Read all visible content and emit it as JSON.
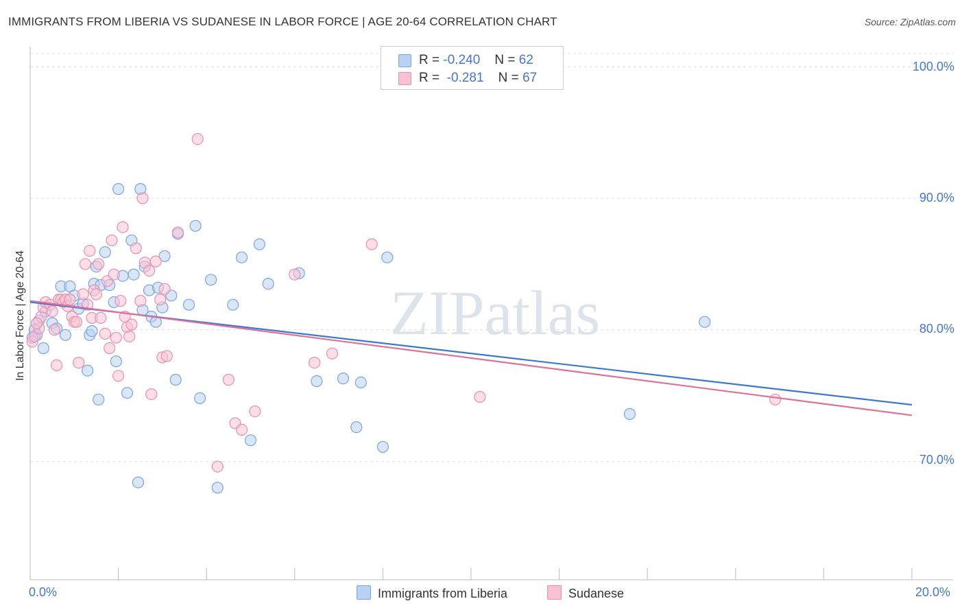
{
  "title": "IMMIGRANTS FROM LIBERIA VS SUDANESE IN LABOR FORCE | AGE 20-64 CORRELATION CHART",
  "source": "Source: ZipAtlas.com",
  "watermark": "ZIPatlas",
  "colors": {
    "liberia_fill": "#b9d1f3",
    "liberia_stroke": "#7ba3e0",
    "liberia_line": "#3a78d4",
    "sudanese_fill": "#f7c3d4",
    "sudanese_stroke": "#e98fae",
    "sudanese_line": "#e0709a",
    "axis_text": "#4477cc",
    "grid": "#dddddd"
  },
  "legend": {
    "rows": [
      {
        "r_label": "R =",
        "r_value": "-0.240",
        "n_label": "N =",
        "n_value": "62"
      },
      {
        "r_label": "R =",
        "r_value": " -0.281",
        "n_label": "N =",
        "n_value": "67"
      }
    ]
  },
  "bottom_legend": {
    "liberia": "Immigrants from Liberia",
    "sudanese": "Sudanese"
  },
  "x_tick_labels": {
    "left": "0.0%",
    "right": "20.0%"
  },
  "y_tick_labels": [
    "100.0%",
    "90.0%",
    "80.0%",
    "70.0%"
  ],
  "chart_data": {
    "type": "scatter",
    "title": "IMMIGRANTS FROM LIBERIA VS SUDANESE IN LABOR FORCE | AGE 20-64 CORRELATION CHART",
    "xlabel": "",
    "ylabel": "In Labor Force | Age 20-64",
    "xlim": [
      0,
      20
    ],
    "ylim": [
      61,
      101
    ],
    "y_ticks": [
      70,
      80,
      90,
      100
    ],
    "series": [
      {
        "name": "Immigrants from Liberia",
        "r": -0.24,
        "n": 62,
        "trend": {
          "x": [
            0,
            20
          ],
          "y": [
            82.1,
            74.3
          ]
        },
        "points": [
          [
            0.1,
            80.0
          ],
          [
            0.15,
            79.6
          ],
          [
            0.2,
            80.7
          ],
          [
            0.3,
            78.6
          ],
          [
            0.35,
            81.4
          ],
          [
            0.5,
            80.5
          ],
          [
            0.6,
            80.1
          ],
          [
            0.7,
            83.3
          ],
          [
            0.8,
            79.6
          ],
          [
            0.9,
            83.3
          ],
          [
            1.0,
            82.6
          ],
          [
            1.1,
            81.6
          ],
          [
            1.2,
            82.0
          ],
          [
            1.3,
            76.9
          ],
          [
            1.35,
            79.6
          ],
          [
            1.4,
            79.9
          ],
          [
            1.45,
            83.5
          ],
          [
            1.5,
            84.8
          ],
          [
            1.55,
            74.7
          ],
          [
            1.6,
            83.4
          ],
          [
            1.7,
            85.9
          ],
          [
            1.8,
            83.4
          ],
          [
            1.9,
            82.1
          ],
          [
            1.95,
            77.6
          ],
          [
            2.0,
            90.7
          ],
          [
            2.1,
            84.1
          ],
          [
            2.2,
            75.2
          ],
          [
            2.3,
            86.8
          ],
          [
            2.35,
            84.2
          ],
          [
            2.45,
            68.4
          ],
          [
            2.5,
            90.7
          ],
          [
            2.55,
            81.5
          ],
          [
            2.6,
            84.8
          ],
          [
            2.7,
            83.0
          ],
          [
            2.75,
            81.0
          ],
          [
            2.85,
            80.6
          ],
          [
            2.9,
            83.2
          ],
          [
            3.0,
            81.7
          ],
          [
            3.05,
            85.6
          ],
          [
            3.2,
            82.6
          ],
          [
            3.3,
            76.2
          ],
          [
            3.35,
            87.3
          ],
          [
            3.6,
            81.9
          ],
          [
            3.75,
            87.9
          ],
          [
            3.85,
            74.8
          ],
          [
            4.1,
            83.8
          ],
          [
            4.25,
            68.0
          ],
          [
            4.6,
            81.9
          ],
          [
            4.8,
            85.5
          ],
          [
            5.0,
            71.6
          ],
          [
            5.2,
            86.5
          ],
          [
            5.4,
            83.5
          ],
          [
            6.1,
            84.3
          ],
          [
            6.5,
            76.1
          ],
          [
            7.1,
            76.3
          ],
          [
            7.4,
            72.6
          ],
          [
            7.5,
            76.0
          ],
          [
            8.0,
            71.1
          ],
          [
            8.1,
            85.5
          ],
          [
            13.6,
            73.6
          ],
          [
            15.3,
            80.6
          ],
          [
            0.05,
            79.4
          ]
        ]
      },
      {
        "name": "Sudanese",
        "r": -0.281,
        "n": 67,
        "trend": {
          "x": [
            0,
            20
          ],
          "y": [
            82.2,
            73.5
          ]
        },
        "points": [
          [
            0.05,
            79.1
          ],
          [
            0.1,
            79.5
          ],
          [
            0.2,
            80.1
          ],
          [
            0.25,
            81.0
          ],
          [
            0.3,
            81.7
          ],
          [
            0.35,
            82.1
          ],
          [
            0.45,
            81.9
          ],
          [
            0.5,
            81.4
          ],
          [
            0.55,
            80.0
          ],
          [
            0.6,
            77.3
          ],
          [
            0.65,
            82.3
          ],
          [
            0.7,
            82.3
          ],
          [
            0.75,
            82.1
          ],
          [
            0.8,
            82.3
          ],
          [
            0.85,
            81.8
          ],
          [
            0.9,
            82.3
          ],
          [
            0.95,
            81.0
          ],
          [
            1.0,
            80.6
          ],
          [
            1.05,
            80.6
          ],
          [
            1.1,
            77.5
          ],
          [
            1.2,
            82.7
          ],
          [
            1.25,
            85.0
          ],
          [
            1.3,
            81.9
          ],
          [
            1.35,
            86.0
          ],
          [
            1.4,
            80.9
          ],
          [
            1.45,
            83.0
          ],
          [
            1.5,
            82.7
          ],
          [
            1.55,
            85.0
          ],
          [
            1.6,
            80.9
          ],
          [
            1.7,
            79.7
          ],
          [
            1.75,
            83.7
          ],
          [
            1.8,
            78.6
          ],
          [
            1.85,
            86.8
          ],
          [
            1.9,
            84.2
          ],
          [
            1.95,
            79.4
          ],
          [
            2.0,
            76.5
          ],
          [
            2.05,
            82.2
          ],
          [
            2.1,
            87.8
          ],
          [
            2.15,
            81.0
          ],
          [
            2.2,
            80.2
          ],
          [
            2.25,
            79.5
          ],
          [
            2.3,
            80.4
          ],
          [
            2.4,
            86.2
          ],
          [
            2.5,
            82.2
          ],
          [
            2.55,
            90.0
          ],
          [
            2.6,
            85.1
          ],
          [
            2.7,
            84.5
          ],
          [
            2.75,
            75.1
          ],
          [
            2.85,
            85.2
          ],
          [
            2.95,
            82.3
          ],
          [
            3.0,
            77.9
          ],
          [
            3.05,
            83.1
          ],
          [
            3.1,
            78.0
          ],
          [
            3.35,
            87.4
          ],
          [
            3.8,
            94.5
          ],
          [
            4.25,
            69.6
          ],
          [
            4.5,
            76.2
          ],
          [
            4.65,
            72.9
          ],
          [
            4.8,
            72.4
          ],
          [
            5.1,
            73.8
          ],
          [
            6.0,
            84.2
          ],
          [
            6.45,
            77.5
          ],
          [
            6.85,
            78.2
          ],
          [
            7.75,
            86.5
          ],
          [
            10.2,
            74.9
          ],
          [
            16.9,
            74.7
          ],
          [
            0.15,
            80.5
          ]
        ]
      }
    ]
  }
}
